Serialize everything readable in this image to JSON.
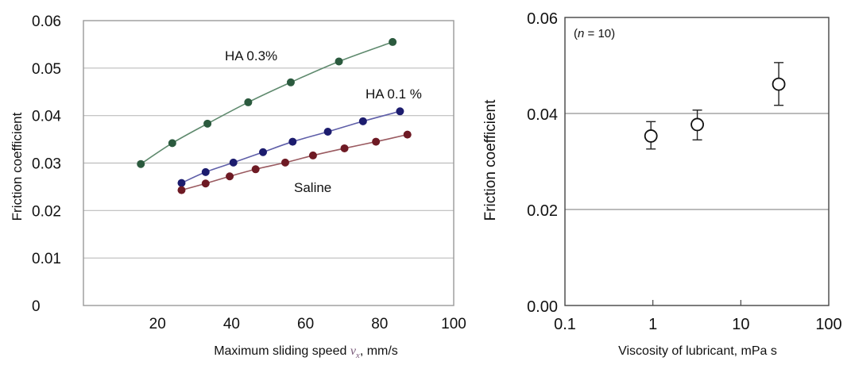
{
  "chart_data": [
    {
      "type": "line",
      "xlabel_text": "Maximum sliding speed ",
      "xlabel_var": "v",
      "xlabel_sub": "x",
      "xlabel_unit": ", mm/s",
      "ylabel": "Friction coefficient",
      "xlim": [
        0,
        100
      ],
      "ylim": [
        0,
        0.06
      ],
      "x_ticks": [
        "20",
        "40",
        "60",
        "80",
        "100"
      ],
      "y_ticks": [
        "0",
        "0.01",
        "0.02",
        "0.03",
        "0.04",
        "0.05",
        "0.06"
      ],
      "grid": true,
      "series": [
        {
          "name": "HA 0.3%",
          "color": "#2b5a3e",
          "line_color": "#5f8a6e",
          "x": [
            15.5,
            24,
            33.5,
            44.5,
            56,
            69,
            83.5
          ],
          "y": [
            0.0298,
            0.0342,
            0.0383,
            0.0428,
            0.047,
            0.0514,
            0.0555
          ]
        },
        {
          "name": "HA 0.1 %",
          "color": "#1c1c6e",
          "line_color": "#5e5ea8",
          "x": [
            26.5,
            33,
            40.5,
            48.5,
            56.5,
            66,
            75.5,
            85.5
          ],
          "y": [
            0.0258,
            0.0281,
            0.0301,
            0.0323,
            0.0345,
            0.0366,
            0.0388,
            0.0409
          ]
        },
        {
          "name": "Saline",
          "color": "#6e1a24",
          "line_color": "#9a5a60",
          "x": [
            26.5,
            33,
            39.5,
            46.5,
            54.5,
            62,
            70.5,
            79,
            87.5
          ],
          "y": [
            0.0243,
            0.0257,
            0.0272,
            0.0287,
            0.0301,
            0.0316,
            0.0331,
            0.0345,
            0.036
          ]
        }
      ]
    },
    {
      "type": "scatter",
      "xlabel": "Viscosity of lubricant, mPa s",
      "ylabel": "Friction coefficient",
      "xscale": "log",
      "xlim": [
        0.1,
        100
      ],
      "ylim": [
        0,
        0.06
      ],
      "x_ticks": [
        "0.1",
        "1",
        "10",
        "100"
      ],
      "y_ticks": [
        "0.00",
        "0.02",
        "0.04",
        "0.06"
      ],
      "grid": true,
      "annotation_prefix": "(",
      "annotation_var": "n",
      "annotation_suffix": " = 10)",
      "points": [
        {
          "x": 0.95,
          "y": 0.0353,
          "err_low": 0.0027,
          "err_high": 0.003
        },
        {
          "x": 3.2,
          "y": 0.0377,
          "err_low": 0.0032,
          "err_high": 0.003
        },
        {
          "x": 27,
          "y": 0.0461,
          "err_low": 0.0044,
          "err_high": 0.0045
        }
      ]
    }
  ]
}
